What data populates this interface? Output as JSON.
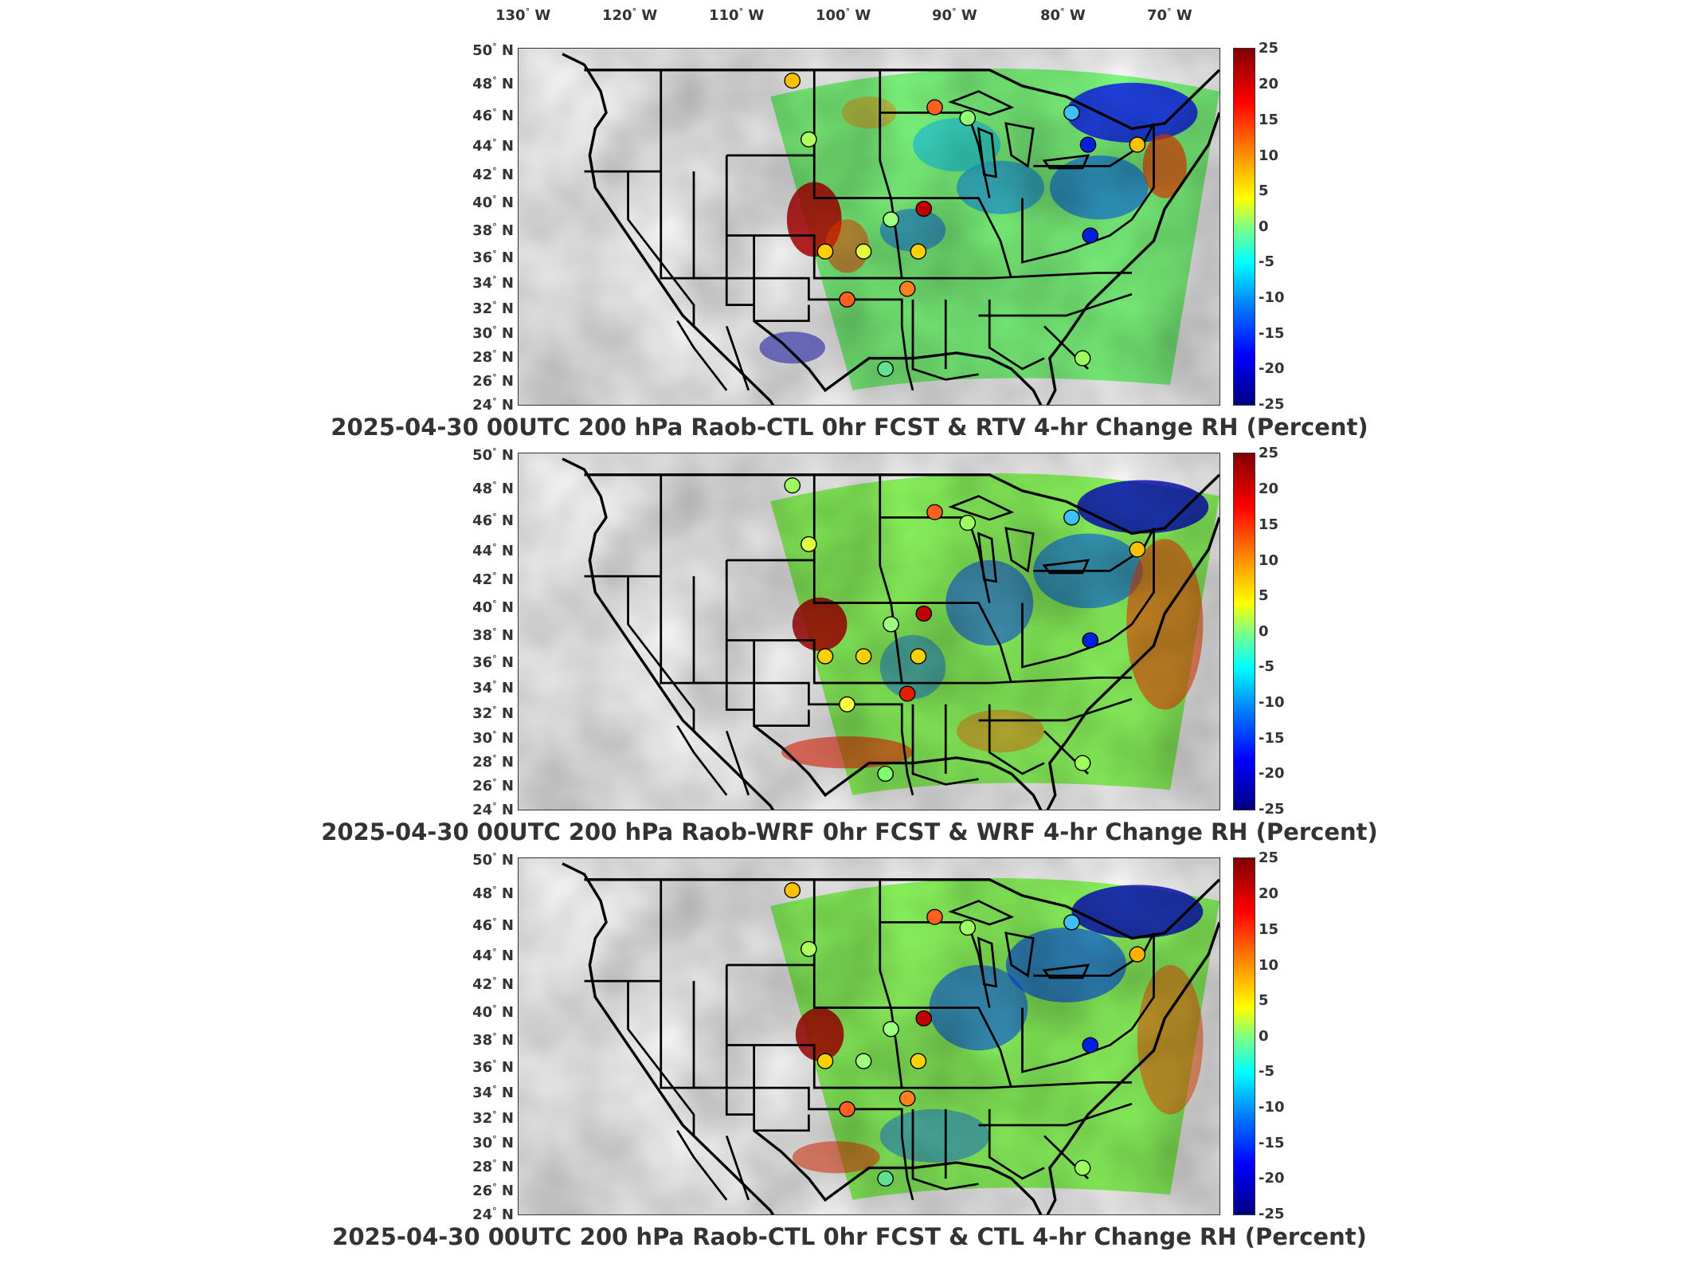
{
  "lon_labels": [
    "130",
    "120",
    "110",
    "100",
    "90",
    "80",
    "70"
  ],
  "lon_suffix": "W",
  "lat_labels": [
    "50",
    "48",
    "46",
    "44",
    "42",
    "40",
    "38",
    "36",
    "34",
    "32",
    "30",
    "28",
    "26",
    "24"
  ],
  "lat_suffix": "N",
  "colorbar": {
    "ticks": [
      "25",
      "20",
      "15",
      "10",
      "5",
      "0",
      "-5",
      "-10",
      "-15",
      "-20",
      "-25"
    ],
    "colors": [
      "#800000",
      "#ff0000",
      "#ff8000",
      "#ffff00",
      "#80ff80",
      "#00ffff",
      "#0080ff",
      "#0000ff",
      "#000080"
    ]
  },
  "panels": [
    {
      "title": "2025-04-30 00UTC 200 hPa Raob-CTL 0hr FCST & RTV 4-hr Change RH (Percent)"
    },
    {
      "title": "2025-04-30 00UTC 200 hPa Raob-WRF 0hr FCST & WRF 4-hr Change RH (Percent)"
    },
    {
      "title": "2025-04-30 00UTC 200 hPa Raob-CTL 0hr FCST & CTL 4-hr Change RH (Percent)"
    }
  ]
}
